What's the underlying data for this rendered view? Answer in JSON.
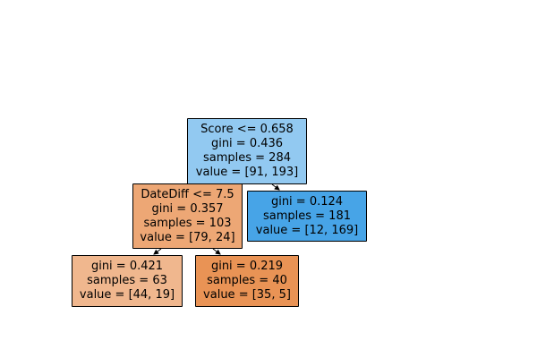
{
  "tree": {
    "nodes": [
      {
        "id": "node-0",
        "split": "Score <= 0.658",
        "gini": "gini = 0.436",
        "samples": "samples = 284",
        "value": "value = [91, 193]",
        "fill": "#92c9f1"
      },
      {
        "id": "node-1",
        "split": "DateDiff <= 7.5",
        "gini": "gini = 0.357",
        "samples": "samples = 103",
        "value": "value = [79, 24]",
        "fill": "#eda775"
      },
      {
        "id": "node-2",
        "gini": "gini = 0.124",
        "samples": "samples = 181",
        "value": "value = [12, 169]",
        "fill": "#47a4e7"
      },
      {
        "id": "node-3",
        "gini": "gini = 0.421",
        "samples": "samples = 63",
        "value": "value = [44, 19]",
        "fill": "#f0b78e"
      },
      {
        "id": "node-4",
        "gini": "gini = 0.219",
        "samples": "samples = 40",
        "value": "value = [35, 5]",
        "fill": "#e99355"
      }
    ],
    "edges": [
      {
        "from": "node-0",
        "to": "node-1"
      },
      {
        "from": "node-0",
        "to": "node-2"
      },
      {
        "from": "node-1",
        "to": "node-3"
      },
      {
        "from": "node-1",
        "to": "node-4"
      }
    ],
    "colors": {
      "border": "#000000",
      "edge": "#000000",
      "background": "#ffffff"
    }
  }
}
